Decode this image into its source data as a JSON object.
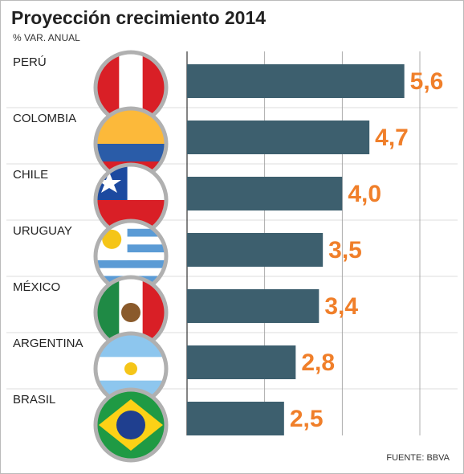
{
  "chart_data": {
    "type": "bar",
    "orientation": "horizontal",
    "title": "Proyección crecimiento 2014",
    "subtitle": "% VAR. ANUAL",
    "source": "FUENTE: BBVA",
    "categories": [
      "PERÚ",
      "COLOMBIA",
      "CHILE",
      "URUGUAY",
      "MÉXICO",
      "ARGENTINA",
      "BRASIL"
    ],
    "values": [
      5.6,
      4.7,
      4.0,
      3.5,
      3.4,
      2.8,
      2.5
    ],
    "value_labels": [
      "5,6",
      "4,7",
      "4,0",
      "3,5",
      "3,4",
      "2,8",
      "2,5"
    ],
    "color": "#3d5f6e",
    "label_color": "#f07f2a",
    "xlim": [
      0,
      6
    ],
    "xticks": [
      0,
      2,
      4,
      6
    ],
    "grid": true
  }
}
